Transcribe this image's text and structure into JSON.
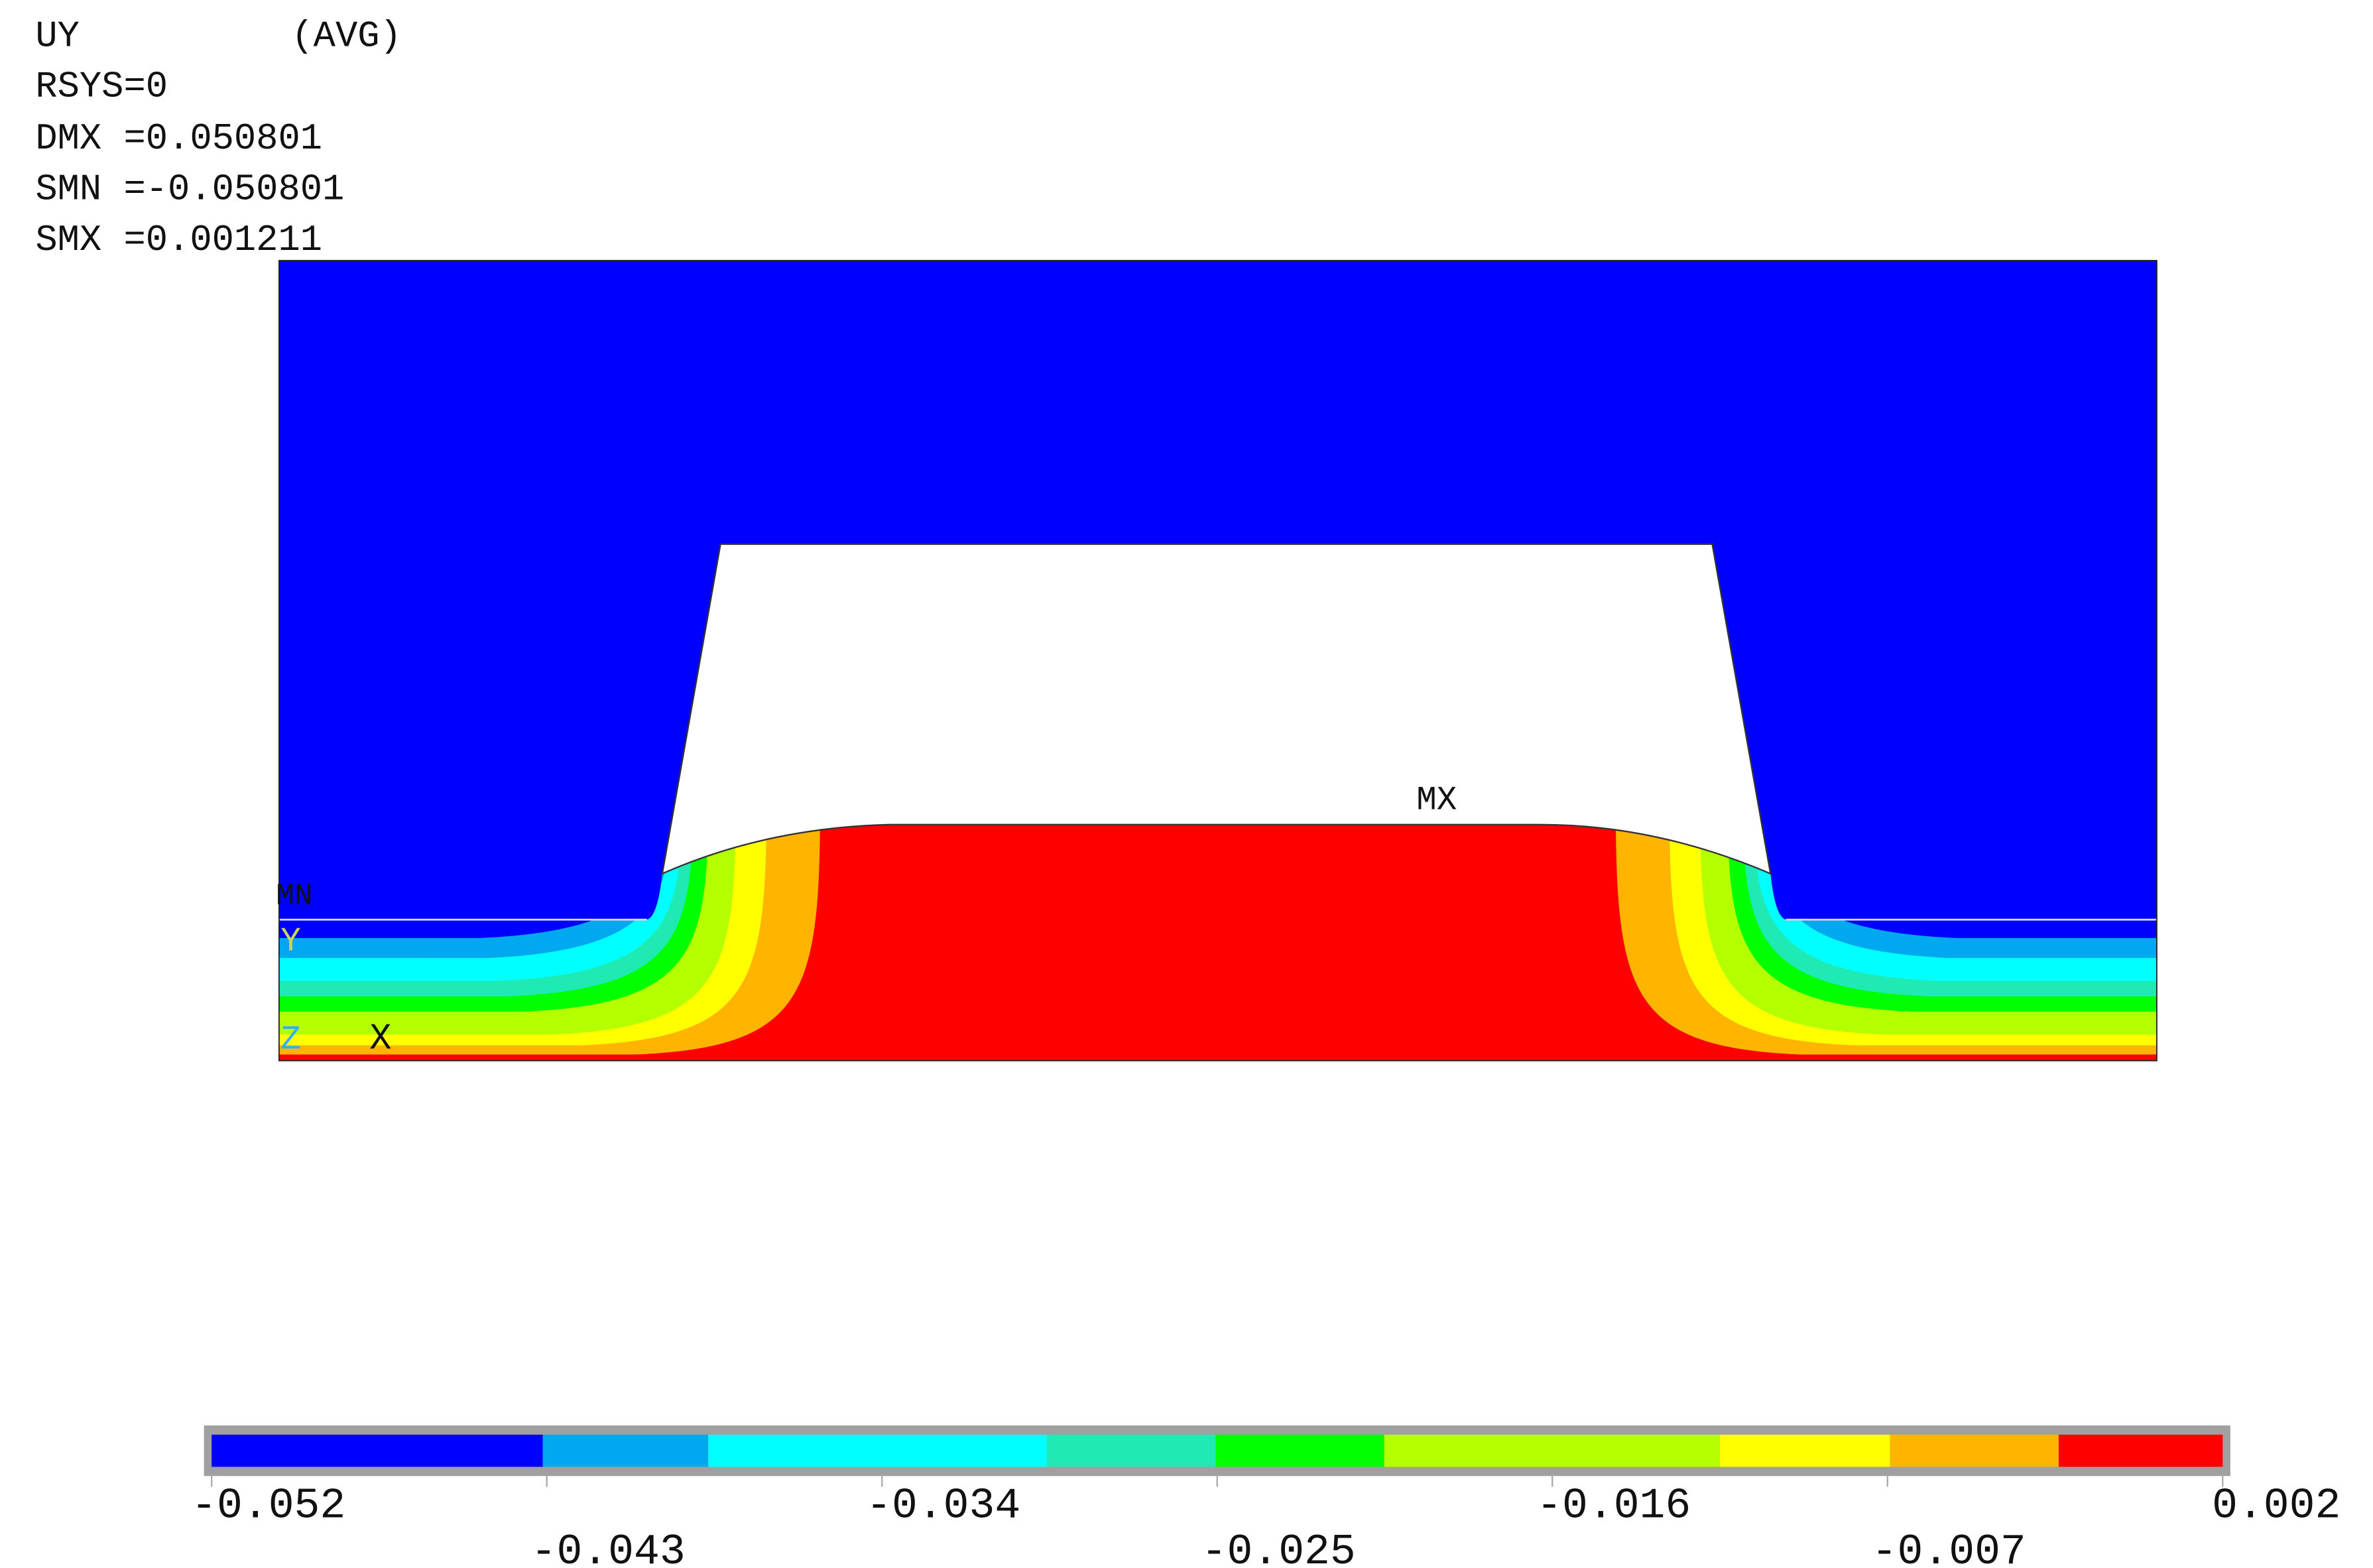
{
  "header": {
    "result": "UY",
    "avg": "(AVG)",
    "lines": [
      "RSYS=0",
      "DMX =0.050801",
      "SMN =-0.050801",
      "SMX =0.001211"
    ]
  },
  "plot": {
    "min_label": "MN",
    "max_label": "MX",
    "axes": [
      "Y",
      "Z",
      "X"
    ]
  },
  "legend": {
    "colors": [
      "#0000ff",
      "#00a8f0",
      "#00ffff",
      "#20eab4",
      "#00ff00",
      "#b4ff00",
      "#ffff00",
      "#ffb400",
      "#ff0000"
    ],
    "labels": [
      "-0.052",
      "-0.043",
      "-0.034",
      "-0.025",
      "-0.016",
      "-0.007",
      "0.002"
    ]
  }
}
